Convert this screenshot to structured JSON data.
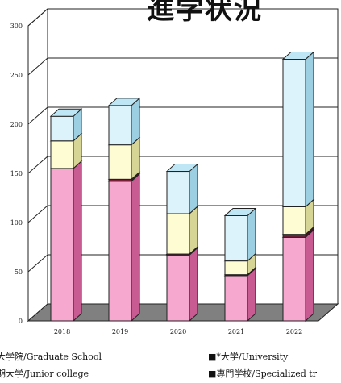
{
  "title_fragment": "進学状況",
  "chart_data": {
    "type": "bar",
    "stacked": true,
    "three_d": true,
    "categories": [
      "2018",
      "2019",
      "2020",
      "2021",
      "2022"
    ],
    "ylim": [
      0,
      300
    ],
    "yticks": [
      "0",
      "50",
      "100",
      "150",
      "200",
      "250",
      "300"
    ],
    "grid": true,
    "series": [
      {
        "name": "大学/University",
        "values": [
          155,
          142,
          67,
          46,
          85
        ],
        "color": "#f7a8cf",
        "side": "#c75b92",
        "top": "#fbd0e4"
      },
      {
        "name": "専門学校/Specialized training",
        "values": [
          0,
          2,
          1,
          1,
          3
        ],
        "color": "#7a1e3c",
        "side": "#4c0f24",
        "top": "#a03a5c"
      },
      {
        "name": "短期大学/Junior college",
        "values": [
          28,
          35,
          41,
          14,
          28
        ],
        "color": "#fdfcd2",
        "side": "#d6d596",
        "top": "#fefee8"
      },
      {
        "name": "大学院/Graduate School",
        "values": [
          25,
          40,
          43,
          46,
          150
        ],
        "color": "#ddf3fb",
        "side": "#9ccfe2",
        "top": "#bfe6f4"
      }
    ]
  },
  "legend": {
    "items": [
      {
        "label": "大学院/Graduate School"
      },
      {
        "label": "■*大学/University"
      },
      {
        "label": "期大学/Junior college"
      },
      {
        "label": "■専門学校/Specialized tr"
      }
    ]
  }
}
